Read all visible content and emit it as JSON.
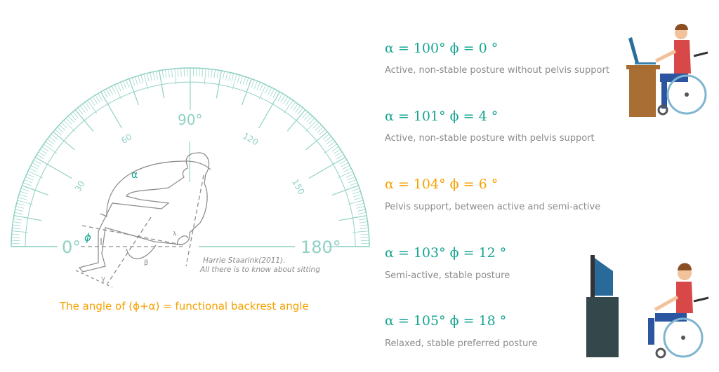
{
  "protractor": {
    "labels": {
      "deg0": "0°",
      "deg30": "30",
      "deg60": "60",
      "deg90": "90°",
      "deg120": "120",
      "deg150": "150",
      "deg180": "180°"
    },
    "color": "#8fd1c4"
  },
  "figure": {
    "alpha": "α",
    "phi": "ϕ",
    "beta": "β",
    "gamma": "γ",
    "lambda": "λ"
  },
  "citation": {
    "line1": "Harrie Staarink(2011).",
    "line2": "All there is to know about sitting"
  },
  "caption": "The angle of (ϕ+α) = functional backrest angle",
  "postures": [
    {
      "formula": "α = 100° ϕ = 0 °",
      "description": "Active, non-stable posture without pelvis support"
    },
    {
      "formula": "α = 101° ϕ = 4 °",
      "description": "Active, non-stable posture with pelvis support"
    },
    {
      "formula": "α = 104° ϕ = 6 °",
      "description": "Pelvis support, between active and semi-active",
      "highlight": true
    },
    {
      "formula": "α = 103° ϕ = 12 °",
      "description": "Semi-active, stable posture"
    },
    {
      "formula": "α = 105° ϕ = 18 °",
      "description": "Relaxed, stable preferred posture"
    }
  ],
  "colors": {
    "teal": "#17a593",
    "orange": "#f5a100",
    "gray": "#8c8c8c"
  },
  "illustrations": [
    "wheelchair-user-at-desk-laptop",
    "wheelchair-user-watching-tv"
  ]
}
